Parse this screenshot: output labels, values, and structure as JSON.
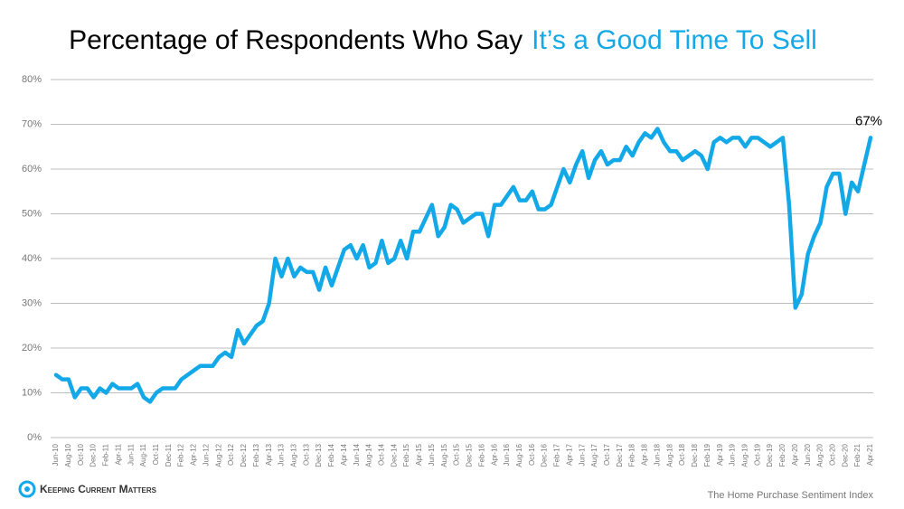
{
  "chart_data": {
    "type": "line",
    "title": "Percentage of Respondents Who Say",
    "title_highlight": "It’s a Good Time To Sell",
    "annotation": "67%",
    "source": "The Home Purchase Sentiment Index",
    "brand": "Keeping Current Matters",
    "categories": [
      "Jun-10",
      null,
      "Aug-10",
      null,
      "Oct-10",
      null,
      "Dec-10",
      null,
      "Feb-11",
      null,
      "Apr-11",
      null,
      "Jun-11",
      null,
      "Aug-11",
      null,
      "Oct-11",
      null,
      "Dec-11",
      null,
      "Feb-12",
      null,
      "Apr-12",
      null,
      "Jun-12",
      null,
      "Aug-12",
      null,
      "Oct-12",
      null,
      "Dec-12",
      null,
      "Feb-13",
      null,
      "Apr-13",
      null,
      "Jun-13",
      null,
      "Aug-13",
      null,
      "Oct-13",
      null,
      "Dec-13",
      null,
      "Feb-14",
      null,
      "Apr-14",
      null,
      "Jun-14",
      null,
      "Aug-14",
      null,
      "Oct-14",
      null,
      "Dec-14",
      null,
      "Feb-15",
      null,
      "Apr-15",
      null,
      "Jun-15",
      null,
      "Aug-15",
      null,
      "Oct-15",
      null,
      "Dec-15",
      null,
      "Feb-16",
      null,
      "Apr-16",
      null,
      "Jun-16",
      null,
      "Aug-16",
      null,
      "Oct-16",
      null,
      "Dec-16",
      null,
      "Feb-17",
      null,
      "Apr-17",
      null,
      "Jun-17",
      null,
      "Aug-17",
      null,
      "Oct-17",
      null,
      "Dec-17",
      null,
      "Feb-18",
      null,
      "Apr-18",
      null,
      "Jun-18",
      null,
      "Aug-18",
      null,
      "Oct-18",
      null,
      "Dec-18",
      null,
      "Feb-19",
      null,
      "Apr-19",
      null,
      "Jun-19",
      null,
      "Aug-19",
      null,
      "Oct-19",
      null,
      "Dec-19",
      null,
      "Feb-20",
      null,
      "Apr-20",
      null,
      "Jun-20",
      null,
      "Aug-20",
      null,
      "Oct-20",
      null,
      "Dec-20",
      null,
      "Feb-21",
      null,
      "Apr-21"
    ],
    "series": [
      {
        "color": "#13a9e8",
        "values": [
          14,
          13,
          13,
          9,
          11,
          11,
          9,
          11,
          10,
          12,
          11,
          11,
          11,
          12,
          9,
          8,
          10,
          11,
          11,
          11,
          13,
          14,
          15,
          16,
          16,
          16,
          18,
          19,
          18,
          24,
          21,
          23,
          25,
          26,
          30,
          40,
          36,
          40,
          36,
          38,
          37,
          37,
          33,
          38,
          34,
          38,
          42,
          43,
          40,
          43,
          38,
          39,
          44,
          39,
          40,
          44,
          40,
          46,
          46,
          49,
          52,
          45,
          47,
          52,
          51,
          48,
          49,
          50,
          50,
          45,
          52,
          52,
          54,
          56,
          53,
          53,
          55,
          51,
          51,
          52,
          56,
          60,
          57,
          61,
          64,
          58,
          62,
          64,
          61,
          62,
          62,
          65,
          63,
          66,
          68,
          67,
          69,
          66,
          64,
          64,
          62,
          63,
          64,
          63,
          60,
          66,
          67,
          66,
          67,
          67,
          65,
          67,
          67,
          66,
          65,
          66,
          67,
          52,
          29,
          32,
          41,
          45,
          48,
          56,
          59,
          59,
          50,
          57,
          55,
          61,
          67
        ]
      }
    ],
    "ylim": [
      0,
      80
    ],
    "yticks": [
      {
        "value": 0,
        "label": "0%"
      },
      {
        "value": 10,
        "label": "10%"
      },
      {
        "value": 20,
        "label": "20%"
      },
      {
        "value": 30,
        "label": "30%"
      },
      {
        "value": 40,
        "label": "40%"
      },
      {
        "value": 50,
        "label": "50%"
      },
      {
        "value": 60,
        "label": "60%"
      },
      {
        "value": 70,
        "label": "70%"
      },
      {
        "value": 80,
        "label": "80%"
      }
    ],
    "grid": true
  }
}
